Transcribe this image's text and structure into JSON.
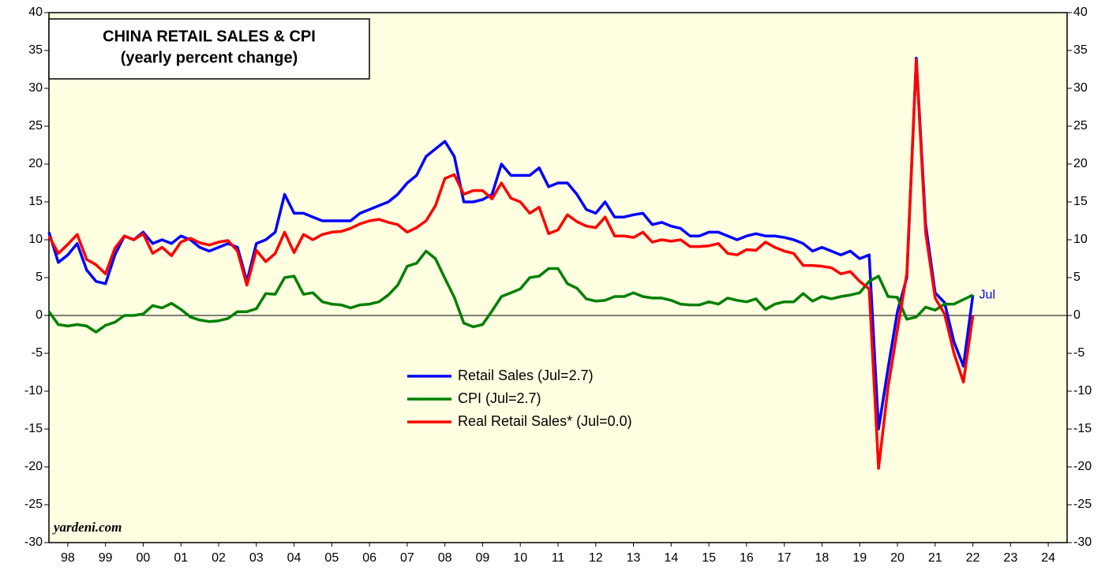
{
  "chart_data": {
    "type": "line",
    "title": "CHINA RETAIL SALES & CPI",
    "subtitle": "(yearly percent change)",
    "source": "yardeni.com",
    "annotation": "Jul",
    "x": [
      1998,
      1998.25,
      1998.5,
      1998.75,
      1999,
      1999.25,
      1999.5,
      1999.75,
      2000,
      2000.25,
      2000.5,
      2000.75,
      2001,
      2001.25,
      2001.5,
      2001.75,
      2002,
      2002.25,
      2002.5,
      2002.75,
      2003,
      2003.25,
      2003.5,
      2003.75,
      2004,
      2004.25,
      2004.5,
      2004.75,
      2005,
      2005.25,
      2005.5,
      2005.75,
      2006,
      2006.25,
      2006.5,
      2006.75,
      2007,
      2007.25,
      2007.5,
      2007.75,
      2008,
      2008.25,
      2008.5,
      2008.75,
      2009,
      2009.25,
      2009.5,
      2009.75,
      2010,
      2010.25,
      2010.5,
      2010.75,
      2011,
      2011.25,
      2011.5,
      2011.75,
      2012,
      2012.25,
      2012.5,
      2012.75,
      2013,
      2013.25,
      2013.5,
      2013.75,
      2014,
      2014.25,
      2014.5,
      2014.75,
      2015,
      2015.25,
      2015.5,
      2015.75,
      2016,
      2016.25,
      2016.5,
      2016.75,
      2017,
      2017.25,
      2017.5,
      2017.75,
      2018,
      2018.25,
      2018.5,
      2018.75,
      2019,
      2019.25,
      2019.5,
      2019.75,
      2020,
      2020.25,
      2020.5,
      2020.75,
      2021,
      2021.25,
      2021.5,
      2021.75,
      2022,
      2022.25,
      2022.5
    ],
    "series": [
      {
        "name": "Retail Sales (Jul=2.7)",
        "color": "#0000ff",
        "values": [
          11,
          7,
          8,
          9.5,
          6,
          4.5,
          4.2,
          8,
          10.5,
          10,
          11,
          9.5,
          10,
          9.5,
          10.5,
          10,
          9,
          8.5,
          9,
          9.5,
          9,
          4.5,
          9.5,
          10,
          11,
          16,
          13.5,
          13.5,
          13,
          12.5,
          12.5,
          12.5,
          12.5,
          13.5,
          14,
          14.5,
          15,
          16,
          17.5,
          18.5,
          21,
          22,
          23,
          21,
          15,
          15,
          15.3,
          16,
          20,
          18.5,
          18.5,
          18.5,
          19.5,
          17,
          17.5,
          17.5,
          16,
          14,
          13.5,
          15,
          13,
          13,
          13.3,
          13.5,
          12,
          12.3,
          11.8,
          11.5,
          10.5,
          10.5,
          11,
          11,
          10.5,
          10,
          10.5,
          10.8,
          10.5,
          10.5,
          10.3,
          10,
          9.5,
          8.5,
          9,
          8.5,
          8,
          8.5,
          7.5,
          8,
          -15,
          -7,
          0.5,
          5,
          34,
          12,
          3,
          1.7,
          -3.5,
          -6.7,
          2.7
        ]
      },
      {
        "name": "CPI (Jul=2.7)",
        "color": "#008000",
        "values": [
          0.5,
          -1.2,
          -1.4,
          -1.2,
          -1.4,
          -2.2,
          -1.3,
          -0.9,
          0,
          0,
          0.2,
          1.3,
          1,
          1.6,
          0.8,
          -0.2,
          -0.6,
          -0.8,
          -0.7,
          -0.4,
          0.5,
          0.5,
          0.9,
          2.9,
          2.8,
          5,
          5.2,
          2.8,
          3,
          1.8,
          1.5,
          1.4,
          1,
          1.4,
          1.5,
          1.8,
          2.7,
          4,
          6.5,
          6.9,
          8.5,
          7.5,
          4.9,
          2.4,
          -1,
          -1.5,
          -1.2,
          0.6,
          2.5,
          3,
          3.5,
          5,
          5.2,
          6.2,
          6.2,
          4.2,
          3.6,
          2.2,
          1.9,
          2,
          2.5,
          2.5,
          3,
          2.5,
          2.3,
          2.3,
          2,
          1.5,
          1.4,
          1.4,
          1.8,
          1.5,
          2.3,
          2,
          1.8,
          2.2,
          0.8,
          1.5,
          1.8,
          1.8,
          2.9,
          1.9,
          2.5,
          2.2,
          2.5,
          2.7,
          3,
          4.5,
          5.2,
          2.5,
          2.4,
          -0.5,
          -0.2,
          1.1,
          0.7,
          1.5,
          1.5,
          2.1,
          2.7
        ]
      },
      {
        "name": "Real Retail Sales* (Jul=0.0)",
        "color": "#ff0000",
        "values": [
          10.5,
          8.2,
          9.4,
          10.7,
          7.4,
          6.7,
          5.5,
          8.9,
          10.5,
          10,
          10.8,
          8.2,
          9,
          7.9,
          9.7,
          10.2,
          9.6,
          9.3,
          9.7,
          9.9,
          8.5,
          4,
          8.6,
          7.1,
          8.2,
          11,
          8.3,
          10.7,
          10,
          10.7,
          11,
          11.1,
          11.5,
          12.1,
          12.5,
          12.7,
          12.3,
          12,
          11,
          11.6,
          12.5,
          14.5,
          18.1,
          18.6,
          16,
          16.5,
          16.5,
          15.4,
          17.5,
          15.5,
          15,
          13.5,
          14.3,
          10.8,
          11.3,
          13.3,
          12.4,
          11.8,
          11.6,
          13,
          10.5,
          10.5,
          10.3,
          11,
          9.7,
          10,
          9.8,
          10,
          9.1,
          9.1,
          9.2,
          9.5,
          8.2,
          8,
          8.7,
          8.6,
          9.7,
          9,
          8.5,
          8.2,
          6.6,
          6.6,
          6.5,
          6.3,
          5.5,
          5.8,
          4.5,
          3.5,
          -20.2,
          -9.5,
          -1.9,
          5.5,
          33.8,
          10.9,
          2.3,
          0.2,
          -5,
          -8.8,
          0
        ]
      }
    ],
    "xlim": [
      1998,
      2025
    ],
    "xticks": [
      {
        "value": 1998.5,
        "label": "98"
      },
      {
        "value": 1999.5,
        "label": "99"
      },
      {
        "value": 2000.5,
        "label": "00"
      },
      {
        "value": 2001.5,
        "label": "01"
      },
      {
        "value": 2002.5,
        "label": "02"
      },
      {
        "value": 2003.5,
        "label": "03"
      },
      {
        "value": 2004.5,
        "label": "04"
      },
      {
        "value": 2005.5,
        "label": "05"
      },
      {
        "value": 2006.5,
        "label": "06"
      },
      {
        "value": 2007.5,
        "label": "07"
      },
      {
        "value": 2008.5,
        "label": "08"
      },
      {
        "value": 2009.5,
        "label": "09"
      },
      {
        "value": 2010.5,
        "label": "10"
      },
      {
        "value": 2011.5,
        "label": "11"
      },
      {
        "value": 2012.5,
        "label": "12"
      },
      {
        "value": 2013.5,
        "label": "13"
      },
      {
        "value": 2014.5,
        "label": "14"
      },
      {
        "value": 2015.5,
        "label": "15"
      },
      {
        "value": 2016.5,
        "label": "16"
      },
      {
        "value": 2017.5,
        "label": "17"
      },
      {
        "value": 2018.5,
        "label": "18"
      },
      {
        "value": 2019.5,
        "label": "19"
      },
      {
        "value": 2020.5,
        "label": "20"
      },
      {
        "value": 2021.5,
        "label": "21"
      },
      {
        "value": 2022.5,
        "label": "22"
      },
      {
        "value": 2023.5,
        "label": "23"
      },
      {
        "value": 2024.5,
        "label": "24"
      }
    ],
    "ylim": [
      -30,
      40
    ],
    "yticks": [
      -30,
      -25,
      -20,
      -15,
      -10,
      -5,
      0,
      5,
      10,
      15,
      20,
      25,
      30,
      35,
      40
    ]
  }
}
